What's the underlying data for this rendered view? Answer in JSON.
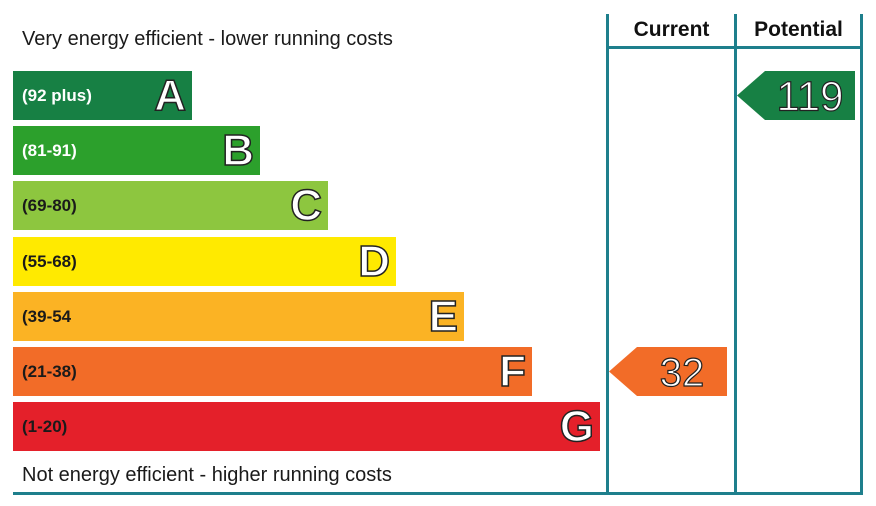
{
  "chart_data": {
    "type": "bar",
    "top_caption": "Very energy efficient - lower running costs",
    "bottom_caption": "Not energy efficient - higher running costs",
    "bands": [
      {
        "range": "(92 plus)",
        "letter": "A",
        "color": "#178044",
        "range_color": "#ffffff"
      },
      {
        "range": "(81-91)",
        "letter": "B",
        "color": "#2ca02c",
        "range_color": "#ffffff"
      },
      {
        "range": "(69-80)",
        "letter": "C",
        "color": "#8dc63f",
        "range_color": "#1a1a1a"
      },
      {
        "range": "(55-68)",
        "letter": "D",
        "color": "#ffea00",
        "range_color": "#1a1a1a"
      },
      {
        "range": "(39-54",
        "letter": "E",
        "color": "#fbb324",
        "range_color": "#1a1a1a"
      },
      {
        "range": "(21-38)",
        "letter": "F",
        "color": "#f26c28",
        "range_color": "#1a1a1a"
      },
      {
        "range": "(1-20)",
        "letter": "G",
        "color": "#e4202a",
        "range_color": "#1a1a1a"
      }
    ],
    "columns": [
      "Current",
      "Potential"
    ],
    "current": {
      "value": 32,
      "band": "F",
      "color": "#f26c28"
    },
    "potential": {
      "value": 119,
      "band": "A",
      "color": "#178044"
    }
  }
}
